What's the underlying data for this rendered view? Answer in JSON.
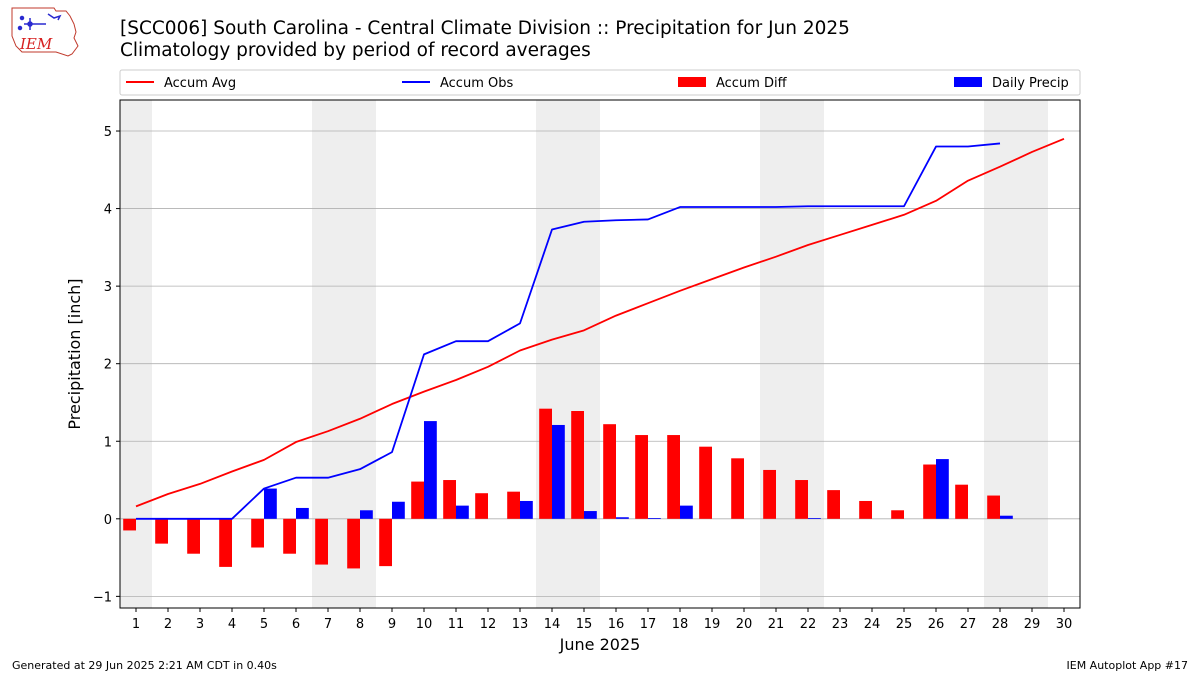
{
  "header": {
    "title_line1": "[SCC006] South Carolina - Central Climate Division :: Precipitation for Jun 2025",
    "title_line2": "Climatology provided by period of record averages"
  },
  "logo": {
    "text": "IEM"
  },
  "footer": {
    "generated": "Generated at 29 Jun 2025 2:21 AM CDT in 0.40s",
    "app": "IEM Autoplot App #17"
  },
  "colors": {
    "avg": "#ff0000",
    "obs": "#0000ff",
    "diff": "#ff0000",
    "daily": "#0000ff",
    "weekend_band": "#eeeeee"
  },
  "chart_data": {
    "type": "bar",
    "title": "[SCC006] South Carolina - Central Climate Division :: Precipitation for Jun 2025",
    "subtitle": "Climatology provided by period of record averages",
    "xlabel": "June 2025",
    "ylabel": "Precipitation [inch]",
    "xlim": [
      0.5,
      30.5
    ],
    "ylim": [
      -1.15,
      5.4
    ],
    "yticks": [
      -1,
      0,
      1,
      2,
      3,
      4,
      5
    ],
    "grid": "horizontal",
    "legend_position": "top",
    "days": [
      1,
      2,
      3,
      4,
      5,
      6,
      7,
      8,
      9,
      10,
      11,
      12,
      13,
      14,
      15,
      16,
      17,
      18,
      19,
      20,
      21,
      22,
      23,
      24,
      25,
      26,
      27,
      28,
      29,
      30
    ],
    "weekend_bands": [
      [
        1,
        1
      ],
      [
        7,
        8
      ],
      [
        14,
        15
      ],
      [
        21,
        22
      ],
      [
        28,
        29
      ]
    ],
    "series": [
      {
        "name": "Accum Avg",
        "type": "line",
        "values": [
          0.16,
          0.32,
          0.45,
          0.61,
          0.76,
          0.99,
          1.13,
          1.29,
          1.48,
          1.64,
          1.79,
          1.96,
          2.17,
          2.31,
          2.43,
          2.62,
          2.78,
          2.94,
          3.09,
          3.24,
          3.38,
          3.53,
          3.66,
          3.79,
          3.92,
          4.1,
          4.36,
          4.54,
          4.73,
          4.9
        ]
      },
      {
        "name": "Accum Obs",
        "type": "line",
        "values": [
          0.0,
          0.0,
          0.0,
          0.0,
          0.39,
          0.53,
          0.53,
          0.64,
          0.86,
          2.12,
          2.29,
          2.29,
          2.52,
          3.73,
          3.83,
          3.85,
          3.86,
          4.02,
          4.02,
          4.02,
          4.02,
          4.03,
          4.03,
          4.03,
          4.03,
          4.8,
          4.8,
          4.84
        ]
      },
      {
        "name": "Accum Diff",
        "type": "bar",
        "values": [
          -0.15,
          -0.32,
          -0.45,
          -0.62,
          -0.37,
          -0.45,
          -0.59,
          -0.64,
          -0.61,
          0.48,
          0.5,
          0.33,
          0.35,
          1.42,
          1.39,
          1.22,
          1.08,
          1.08,
          0.93,
          0.78,
          0.63,
          0.5,
          0.37,
          0.23,
          0.11,
          0.7,
          0.44,
          0.3
        ]
      },
      {
        "name": "Daily Precip",
        "type": "bar",
        "values": [
          0.0,
          0.0,
          0.0,
          0.0,
          0.39,
          0.14,
          0.0,
          0.11,
          0.22,
          1.26,
          0.17,
          0.0,
          0.23,
          1.21,
          0.1,
          0.02,
          0.01,
          0.17,
          0.0,
          0.0,
          0.0,
          0.01,
          0.0,
          0.0,
          0.0,
          0.77,
          0.0,
          0.04
        ]
      }
    ]
  }
}
